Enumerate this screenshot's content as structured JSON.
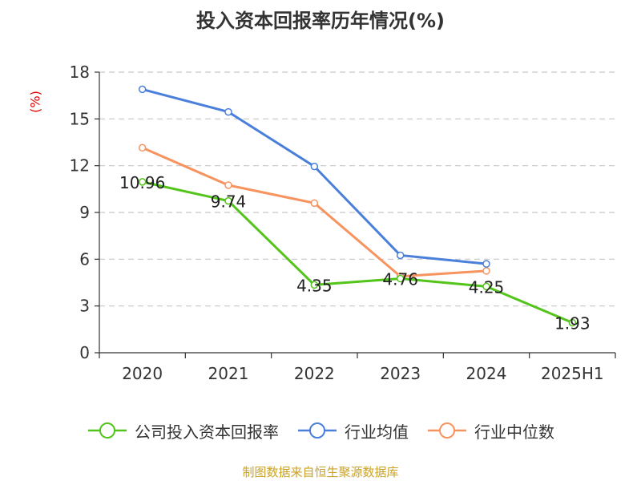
{
  "title": "投入资本回报率历年情况(%)",
  "ylabel": "(%)",
  "source": "制图数据来自恒生聚源数据库",
  "chart_data": {
    "type": "line",
    "title": "投入资本回报率历年情况(%)",
    "xlabel": "",
    "ylabel": "(%)",
    "ylim": [
      0,
      18
    ],
    "yticks": [
      0,
      3,
      6,
      9,
      12,
      15,
      18
    ],
    "grid": true,
    "legend_position": "bottom",
    "categories": [
      "2020",
      "2021",
      "2022",
      "2023",
      "2024",
      "2025H1"
    ],
    "series": [
      {
        "name": "公司投入资本回报率",
        "color": "#52c41a",
        "values": [
          10.96,
          9.74,
          4.35,
          4.76,
          4.25,
          1.93
        ],
        "labels": [
          "10.96",
          "9.74",
          "4.35",
          "4.76",
          "4.25",
          "1.93"
        ]
      },
      {
        "name": "行业均值",
        "color": "#4a7fdb",
        "values": [
          16.9,
          15.45,
          11.95,
          6.25,
          5.7,
          null
        ]
      },
      {
        "name": "行业中位数",
        "color": "#f7935e",
        "values": [
          13.15,
          10.75,
          9.6,
          4.9,
          5.25,
          null
        ]
      }
    ]
  }
}
